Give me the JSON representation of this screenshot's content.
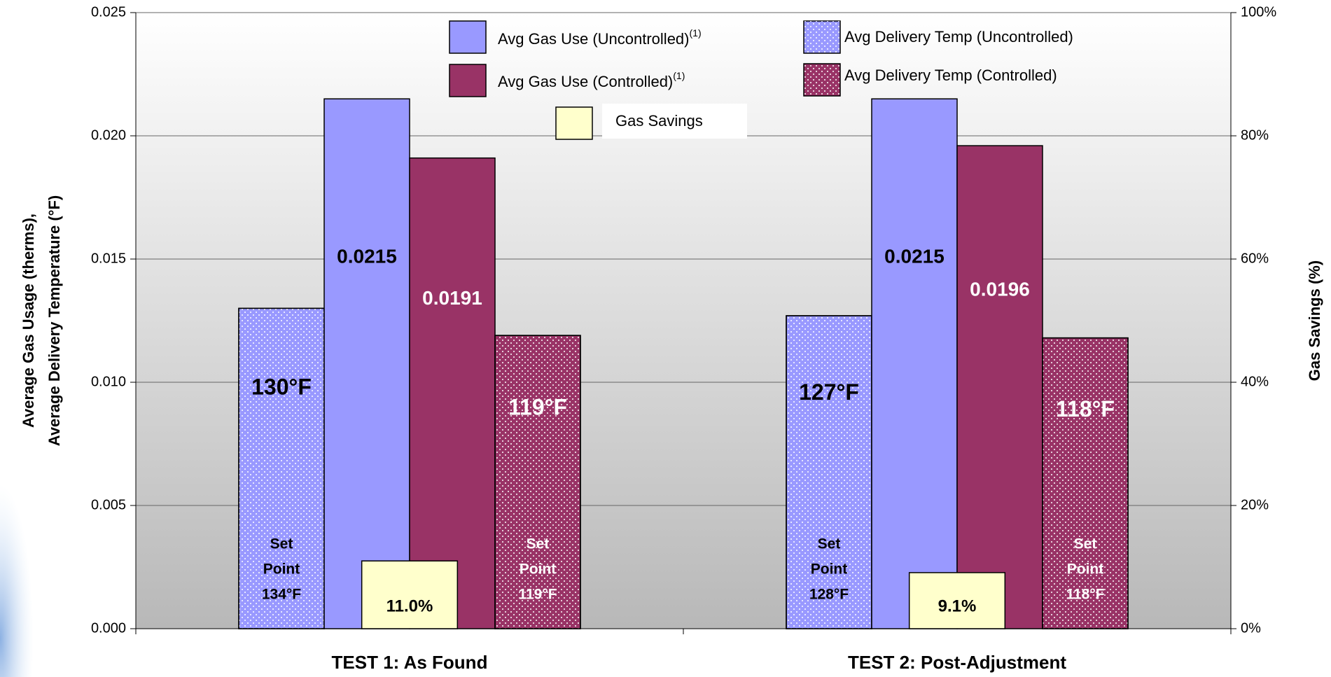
{
  "chart_data": {
    "type": "bar",
    "categories": [
      "TEST 1: As Found",
      "TEST 2: Post-Adjustment"
    ],
    "ylabel": [
      "Average Gas Usage (therms),",
      "Average Delivery Temperature (°F)"
    ],
    "y2label": "Gas Savings (%)",
    "ylim": [
      0,
      0.025
    ],
    "yticks": [
      {
        "value": 0,
        "label": "0.000"
      },
      0.005,
      {
        "value": 0.01,
        "label": "0.010"
      },
      0.015,
      {
        "value": 0.02,
        "label": "0.020"
      },
      0.025
    ],
    "y2lim": [
      0,
      100
    ],
    "y2ticks": [
      {
        "value": 0,
        "label": "0%"
      },
      {
        "value": 20,
        "label": "20%"
      },
      {
        "value": 40,
        "label": "40%"
      },
      {
        "value": 60,
        "label": "60%"
      },
      {
        "value": 80,
        "label": "80%"
      },
      {
        "value": 100,
        "label": "100%"
      }
    ],
    "grid": true,
    "series": [
      {
        "name": "Avg Delivery Temp (Uncontrolled)",
        "color": "#9999ff",
        "pattern": "dots",
        "label_color": "#000000",
        "values": [
          0.013,
          0.0127
        ],
        "value_labels": [
          "130°F",
          "127°F"
        ],
        "notes": [
          [
            "Set",
            "Point",
            "134°F"
          ],
          [
            "Set",
            "Point",
            "128°F"
          ]
        ]
      },
      {
        "name": "Avg Gas Use (Uncontrolled)",
        "name_note": "(1)",
        "color": "#9999ff",
        "label_color": "#000000",
        "values": [
          0.0215,
          0.0215
        ]
      },
      {
        "name": "Avg Gas Use (Controlled)",
        "name_note": "(1)",
        "color": "#993366",
        "label_color": "#ffffff",
        "values": [
          0.0191,
          0.0196
        ]
      },
      {
        "name": "Avg Delivery Temp (Controlled)",
        "color": "#993366",
        "pattern": "dots",
        "label_color": "#ffffff",
        "values": [
          0.0119,
          0.0118
        ],
        "value_labels": [
          "119°F",
          "118°F"
        ],
        "notes": [
          [
            "Set",
            "Point",
            "119°F"
          ],
          [
            "Set",
            "Point",
            "118°F"
          ]
        ]
      },
      {
        "name": "Gas Savings",
        "color": "#ffffcc",
        "axis": "y2",
        "label_color": "#000000",
        "values": [
          11.0,
          9.1
        ],
        "value_labels": [
          "11.0%",
          "9.1%"
        ]
      }
    ]
  }
}
